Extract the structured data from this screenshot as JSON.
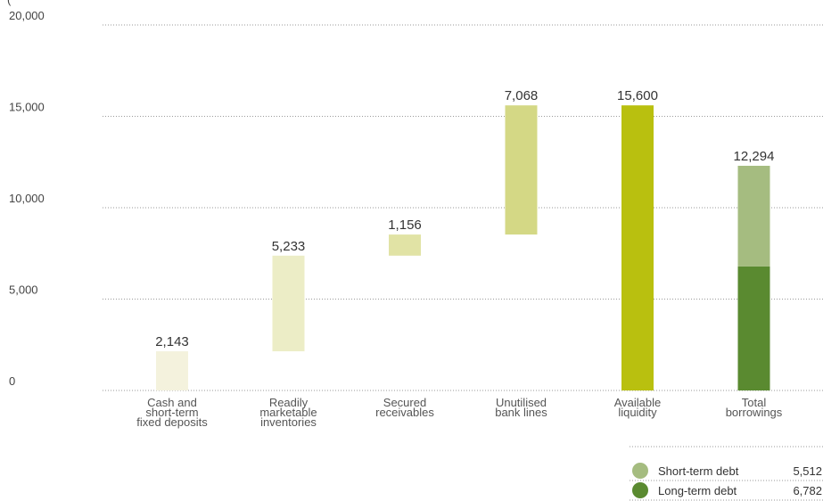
{
  "chart_data": {
    "type": "bar",
    "title": "",
    "ylabel": "(",
    "ylim": [
      0,
      20000
    ],
    "yticks": [
      {
        "value": 0,
        "label": "0"
      },
      {
        "value": 5000,
        "label": "5,000"
      },
      {
        "value": 10000,
        "label": "10,000"
      },
      {
        "value": 15000,
        "label": "15,000"
      },
      {
        "value": 20000,
        "label": "20,000"
      }
    ],
    "grid": true,
    "legend_position": "bottom-right",
    "categories": [
      {
        "lines": [
          "Cash and",
          "short-term",
          "fixed deposits"
        ],
        "start": 0,
        "end": 2143,
        "label": "2,143",
        "color": "#f4f2dd"
      },
      {
        "lines": [
          "Readily",
          "marketable",
          "inventories"
        ],
        "start": 2143,
        "end": 7376,
        "label": "5,233",
        "color": "#ecedc6"
      },
      {
        "lines": [
          "Secured",
          "receivables"
        ],
        "start": 7376,
        "end": 8532,
        "label": "1,156",
        "color": "#e1e3a5"
      },
      {
        "lines": [
          "Unutilised",
          "bank lines"
        ],
        "start": 8532,
        "end": 15600,
        "label": "7,068",
        "color": "#d4d885"
      },
      {
        "lines": [
          "Available",
          "liquidity"
        ],
        "start": 0,
        "end": 15600,
        "label": "15,600",
        "color": "#b9c00f"
      },
      {
        "lines": [
          "Total",
          "borrowings"
        ],
        "stacked": true,
        "label": "12,294",
        "segments": [
          {
            "name": "Long-term debt",
            "value": 6782,
            "color": "#5a8a30"
          },
          {
            "name": "Short-term debt",
            "value": 5512,
            "color": "#a5bc80"
          }
        ]
      }
    ],
    "legend": [
      {
        "name": "Short-term debt",
        "value": "5,512",
        "color": "#a5bc80"
      },
      {
        "name": "Long-term debt",
        "value": "6,782",
        "color": "#5a8a30"
      }
    ]
  }
}
